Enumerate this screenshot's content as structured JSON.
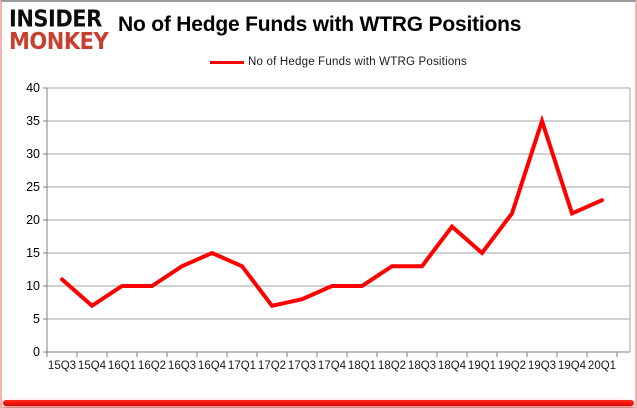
{
  "logo": {
    "line1": "INSIDER",
    "line2": "MONKEY"
  },
  "header": {
    "title": "No of Hedge Funds with WTRG Positions"
  },
  "legend": {
    "label": "No of Hedge Funds with WTRG Positions",
    "line_color": "#ff0000"
  },
  "chart_data": {
    "type": "line",
    "title": "No of Hedge Funds with WTRG Positions",
    "categories": [
      "15Q3",
      "15Q4",
      "16Q1",
      "16Q2",
      "16Q3",
      "16Q4",
      "17Q1",
      "17Q2",
      "17Q3",
      "17Q4",
      "18Q1",
      "18Q2",
      "18Q3",
      "18Q4",
      "19Q1",
      "19Q2",
      "19Q3",
      "19Q4",
      "20Q1"
    ],
    "series": [
      {
        "name": "No of Hedge Funds with WTRG Positions",
        "color": "#ff0000",
        "values": [
          11,
          7,
          10,
          10,
          13,
          15,
          13,
          7,
          8,
          10,
          10,
          13,
          13,
          19,
          15,
          21,
          35,
          21,
          23
        ]
      }
    ],
    "xlabel": "",
    "ylabel": "",
    "ylim": [
      0,
      40
    ],
    "yticks": [
      0,
      5,
      10,
      15,
      20,
      25,
      30,
      35,
      40
    ],
    "grid": true,
    "legend_position": "top-center"
  },
  "colors": {
    "line": "#ff0000",
    "gridline": "#a6a6a6",
    "axis": "#7f7f7f",
    "tick_label": "#1a1a1a",
    "title_text": "#000000",
    "logo_red": "#c7402f",
    "bottom_bar": "#e01005"
  }
}
